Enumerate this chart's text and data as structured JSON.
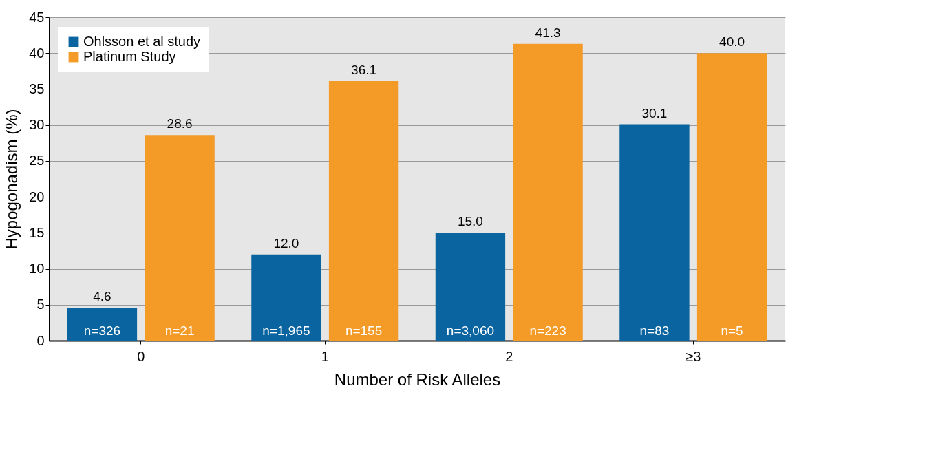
{
  "chart_data": {
    "type": "bar",
    "xlabel": "Number of Risk Alleles",
    "ylabel": "Hypogonadism (%)",
    "categories": [
      "0",
      "1",
      "2",
      "≥3"
    ],
    "series": [
      {
        "name": "Ohlsson et al study",
        "color": "#0a64a0",
        "values": [
          4.6,
          12.0,
          15.0,
          30.1
        ],
        "value_labels": [
          "4.6",
          "12.0",
          "15.0",
          "30.1"
        ]
      },
      {
        "name": "Platinum Study",
        "color": "#f39a27",
        "values": [
          28.6,
          36.1,
          41.3,
          40.0
        ],
        "value_labels": [
          "28.6",
          "36.1",
          "41.3",
          "40.0"
        ]
      }
    ],
    "ylim": [
      0,
      45
    ],
    "yticks": [
      0,
      5,
      10,
      15,
      20,
      25,
      30,
      35,
      40,
      45
    ],
    "grid": "y",
    "legend": "top left",
    "annotations": [
      "n=326",
      "n=21",
      "n=1,965",
      "n=155",
      "n=3,060",
      "n=223",
      "n=83",
      "n=5"
    ]
  }
}
